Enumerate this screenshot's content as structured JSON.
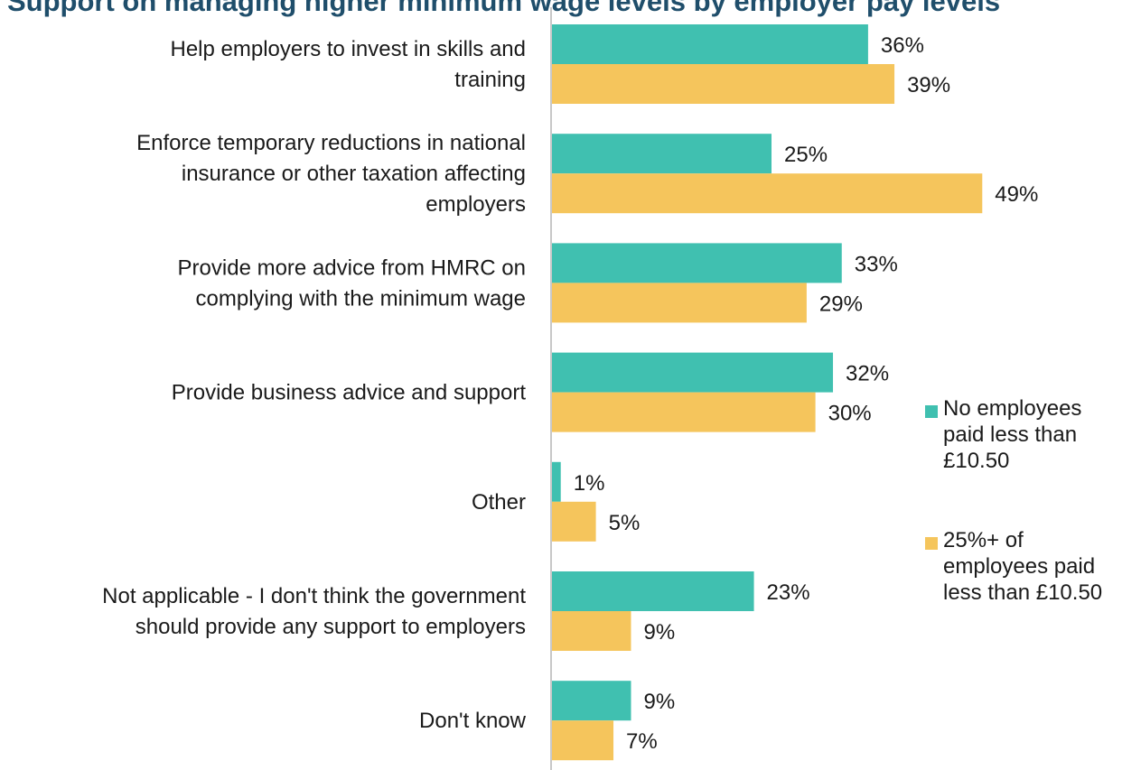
{
  "title": "Support on managing higher minimum wage levels by employer pay levels",
  "colors": {
    "series_a": "#40c0b0",
    "series_b": "#f5c55c",
    "axis": "#c8c8c8"
  },
  "chart_data": {
    "type": "bar",
    "orientation": "horizontal",
    "categories": [
      [
        "Help employers to invest in skills and",
        "training"
      ],
      [
        "Enforce temporary reductions in national",
        "insurance or other taxation affecting",
        "employers"
      ],
      [
        "Provide more advice from HMRC on",
        "complying with the minimum wage"
      ],
      [
        "Provide business advice and support"
      ],
      [
        "Other"
      ],
      [
        "Not applicable - I don't think the government",
        "should provide any support to employers"
      ],
      [
        "Don't know"
      ]
    ],
    "series": [
      {
        "name": "No employees paid less than £10.50",
        "legend_lines": [
          "No employees",
          "paid less than",
          "£10.50"
        ],
        "values": [
          36,
          25,
          33,
          32,
          1,
          23,
          9
        ],
        "labels": [
          "36%",
          "25%",
          "33%",
          "32%",
          "1%",
          "23%",
          "9%"
        ]
      },
      {
        "name": "25%+ of employees paid less than £10.50",
        "legend_lines": [
          "25%+ of",
          "employees paid",
          "less than £10.50"
        ],
        "values": [
          39,
          49,
          29,
          30,
          5,
          9,
          7
        ],
        "labels": [
          "39%",
          "49%",
          "29%",
          "30%",
          "5%",
          "9%",
          "7%"
        ]
      }
    ],
    "xlim": [
      0,
      52
    ],
    "legend_position": "right",
    "grid": false
  }
}
